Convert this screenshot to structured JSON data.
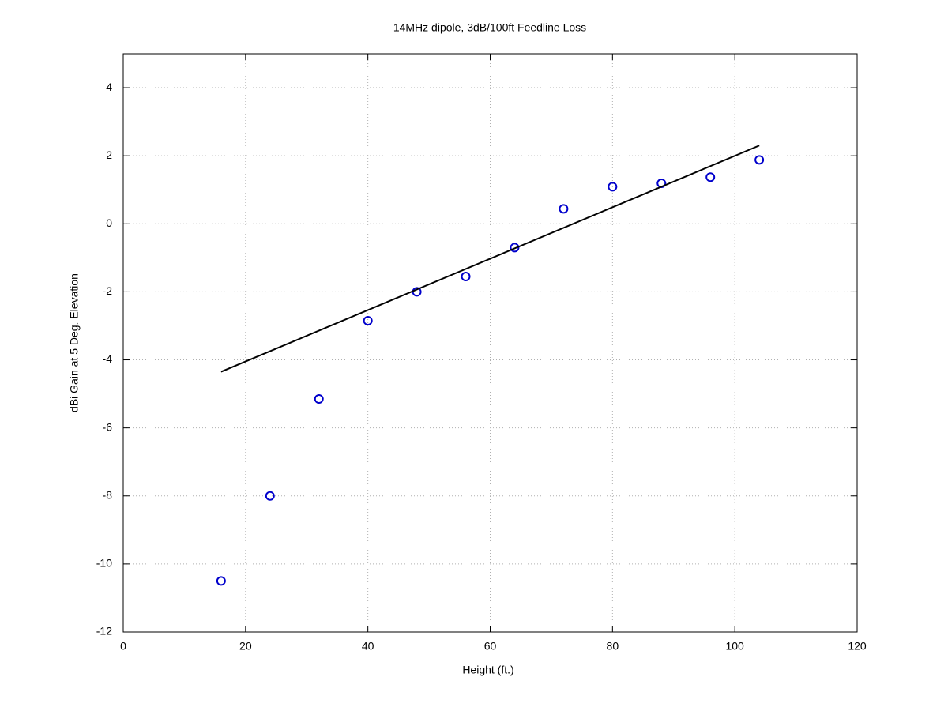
{
  "chart_data": {
    "type": "scatter",
    "title": "14MHz dipole, 3dB/100ft Feedline Loss",
    "x_label": "Height (ft.)",
    "y_label": "dBi Gain at 5 Deg. Elevation",
    "xlim": [
      0,
      120
    ],
    "xticks": [
      0,
      20,
      40,
      60,
      80,
      100,
      120
    ],
    "ylim": [
      -12,
      5
    ],
    "yticks": [
      -12,
      -10,
      -8,
      -6,
      -4,
      -2,
      0,
      2,
      4
    ],
    "grid": true,
    "series": [
      {
        "color": "#0000cc",
        "marker": "circle",
        "x": [
          16,
          24,
          32,
          40,
          48,
          56,
          64,
          72,
          80,
          88,
          96,
          104
        ],
        "values": [
          -10.5,
          -8.0,
          -5.15,
          -2.85,
          -2.0,
          -1.55,
          -0.7,
          0.44,
          1.09,
          1.19,
          1.37,
          1.88
        ]
      },
      {
        "color": "#000000",
        "marker": "line",
        "x": [
          16,
          104
        ],
        "values": [
          -4.35,
          2.3
        ]
      }
    ]
  }
}
